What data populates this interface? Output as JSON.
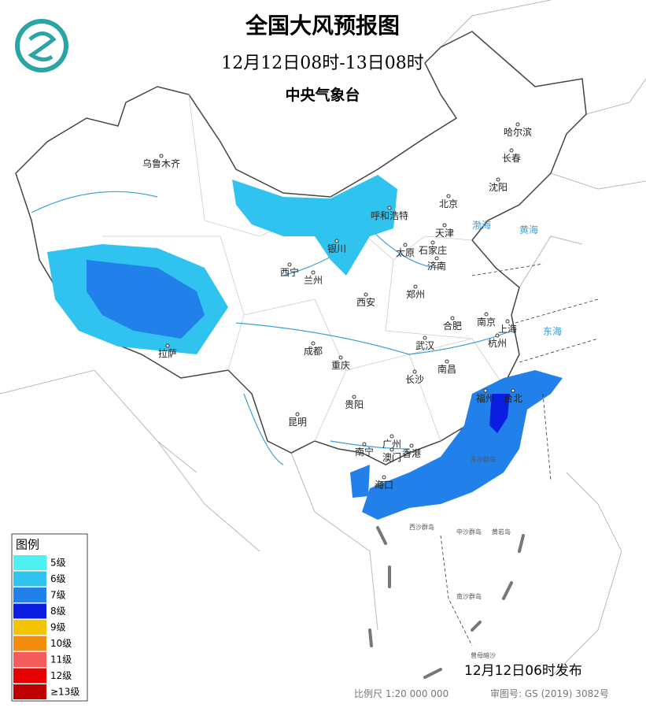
{
  "header": {
    "title": "全国大风预报图",
    "period": "12月12日08时-13日08时",
    "issuer": "中央气象台"
  },
  "legend": {
    "title": "图例",
    "items": [
      {
        "label": "5级",
        "color": "#4ff0f2"
      },
      {
        "label": "6级",
        "color": "#30c3f0"
      },
      {
        "label": "7级",
        "color": "#2280ea"
      },
      {
        "label": "8级",
        "color": "#0b1de0"
      },
      {
        "label": "9级",
        "color": "#f5c400"
      },
      {
        "label": "10级",
        "color": "#f38b0c"
      },
      {
        "label": "11级",
        "color": "#f45c5c"
      },
      {
        "label": "12级",
        "color": "#e60000"
      },
      {
        "label": "≥13级",
        "color": "#c00000"
      }
    ]
  },
  "cities": [
    "乌鲁木齐",
    "哈尔滨",
    "长春",
    "沈阳",
    "呼和浩特",
    "北京",
    "天津",
    "银川",
    "太原",
    "石家庄",
    "济南",
    "西宁",
    "兰州",
    "郑州",
    "西安",
    "合肥",
    "南京",
    "上海",
    "武汉",
    "杭州",
    "成都",
    "拉萨",
    "南昌",
    "重庆",
    "长沙",
    "福州",
    "台北",
    "贵阳",
    "昆明",
    "广州",
    "南宁",
    "澳门",
    "香港",
    "海口"
  ],
  "seas": [
    "渤海",
    "黄海",
    "东海"
  ],
  "islands": [
    "东沙群岛",
    "西沙群岛",
    "中沙群岛",
    "黄岩岛",
    "南沙群岛",
    "曾母暗沙"
  ],
  "footer": {
    "published": "12月12日06时发布",
    "scale": "比例尺 1:20 000 000",
    "map_number": "审图号: GS (2019) 3082号"
  }
}
